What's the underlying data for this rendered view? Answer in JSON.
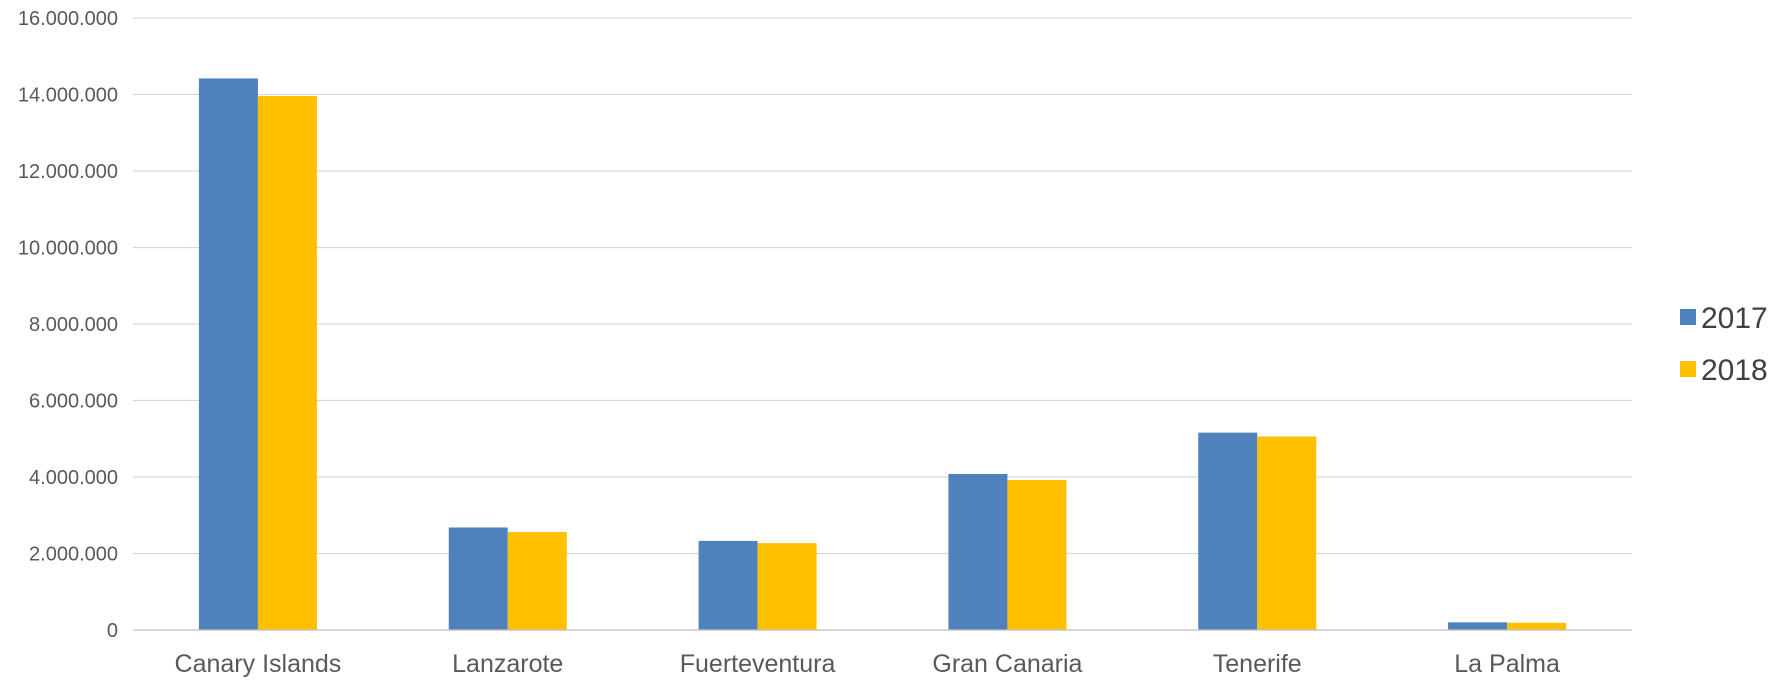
{
  "chart_data": {
    "type": "bar",
    "categories": [
      "Canary Islands",
      "Lanzarote",
      "Fuerteventura",
      "Gran Canaria",
      "Tenerife",
      "La Palma"
    ],
    "series": [
      {
        "name": "2017",
        "color": "#4f81bd",
        "values": [
          14420000,
          2680000,
          2330000,
          4080000,
          5160000,
          200000
        ]
      },
      {
        "name": "2018",
        "color": "#ffc000",
        "values": [
          13960000,
          2560000,
          2270000,
          3920000,
          5060000,
          190000
        ]
      }
    ],
    "y_ticks": [
      {
        "value": 0,
        "label": "0"
      },
      {
        "value": 2000000,
        "label": "2.000.000"
      },
      {
        "value": 4000000,
        "label": "4.000.000"
      },
      {
        "value": 6000000,
        "label": "6.000.000"
      },
      {
        "value": 8000000,
        "label": "8.000.000"
      },
      {
        "value": 10000000,
        "label": "10.000.000"
      },
      {
        "value": 12000000,
        "label": "12.000.000"
      },
      {
        "value": 14000000,
        "label": "14.000.000"
      },
      {
        "value": 16000000,
        "label": "16.000.000"
      }
    ],
    "ylim": [
      0,
      16000000
    ],
    "grid": true,
    "legend_position": "right"
  }
}
